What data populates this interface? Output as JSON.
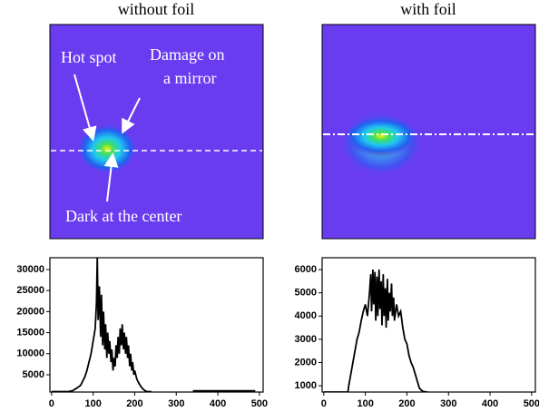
{
  "chart_data": [
    {
      "type": "line",
      "title": "without foil",
      "annotations": [
        "Hot spot",
        "Damage on",
        "a mirror",
        "Dark at the center"
      ],
      "color": "#000000",
      "x": [
        0,
        10,
        20,
        30,
        40,
        50,
        60,
        70,
        75,
        80,
        85,
        90,
        95,
        100,
        105,
        108,
        110,
        112,
        115,
        118,
        120,
        123,
        125,
        128,
        130,
        133,
        135,
        138,
        140,
        143,
        145,
        148,
        150,
        153,
        155,
        158,
        160,
        163,
        165,
        168,
        170,
        173,
        175,
        178,
        180,
        183,
        185,
        188,
        190,
        193,
        195,
        198,
        200,
        205,
        210,
        215,
        220,
        225,
        230,
        235,
        240,
        290,
        340,
        360,
        380,
        400,
        420,
        440,
        460,
        480,
        490
      ],
      "values": [
        1000,
        1000,
        1000,
        1000,
        1000,
        1200,
        1800,
        2500,
        3500,
        4500,
        6000,
        8000,
        10000,
        13000,
        16000,
        22000,
        33000,
        18000,
        26000,
        14000,
        24000,
        12000,
        20000,
        11000,
        17000,
        9000,
        15000,
        10000,
        13000,
        8000,
        11000,
        6000,
        9000,
        7000,
        12000,
        9000,
        14000,
        10000,
        16000,
        12000,
        17000,
        11000,
        15000,
        10000,
        14000,
        9000,
        12000,
        7000,
        10000,
        6000,
        8000,
        5000,
        6000,
        4000,
        3000,
        2200,
        1600,
        1200,
        1000,
        1000,
        1000,
        null,
        1200,
        1200,
        1200,
        1200,
        1200,
        1200,
        1200,
        1200,
        1200
      ],
      "xlim": [
        -4,
        509
      ],
      "xticks": [
        0,
        100,
        200,
        300,
        400,
        500
      ],
      "ylim": [
        900,
        32800
      ],
      "yticks": [
        5000,
        10000,
        15000,
        20000,
        25000,
        30000
      ]
    },
    {
      "type": "line",
      "title": "with foil",
      "color": "#000000",
      "x": [
        0,
        20,
        40,
        58,
        60,
        65,
        70,
        75,
        80,
        85,
        90,
        95,
        100,
        105,
        110,
        113,
        115,
        118,
        120,
        123,
        125,
        128,
        130,
        133,
        135,
        138,
        140,
        143,
        145,
        148,
        150,
        153,
        155,
        158,
        160,
        163,
        165,
        168,
        170,
        175,
        180,
        185,
        190,
        195,
        200,
        205,
        210,
        215,
        220,
        225,
        230,
        235,
        240,
        250
      ],
      "values": [
        730,
        730,
        730,
        730,
        1000,
        1500,
        2000,
        2500,
        3000,
        3300,
        3800,
        4200,
        4500,
        4000,
        5000,
        5800,
        4200,
        6000,
        4500,
        5900,
        3800,
        5700,
        4000,
        6000,
        4300,
        5500,
        3600,
        5800,
        4000,
        5200,
        3500,
        5600,
        3800,
        5000,
        4200,
        5400,
        4000,
        4800,
        3800,
        4500,
        4000,
        4200,
        3500,
        3000,
        2800,
        2300,
        2000,
        1800,
        1500,
        1200,
        900,
        800,
        750,
        730
      ],
      "xlim": [
        -4,
        509
      ],
      "xticks": [
        0,
        100,
        200,
        300,
        400,
        500
      ],
      "ylim": [
        730,
        6510
      ],
      "yticks": [
        1000,
        2000,
        3000,
        4000,
        5000,
        6000
      ]
    }
  ]
}
